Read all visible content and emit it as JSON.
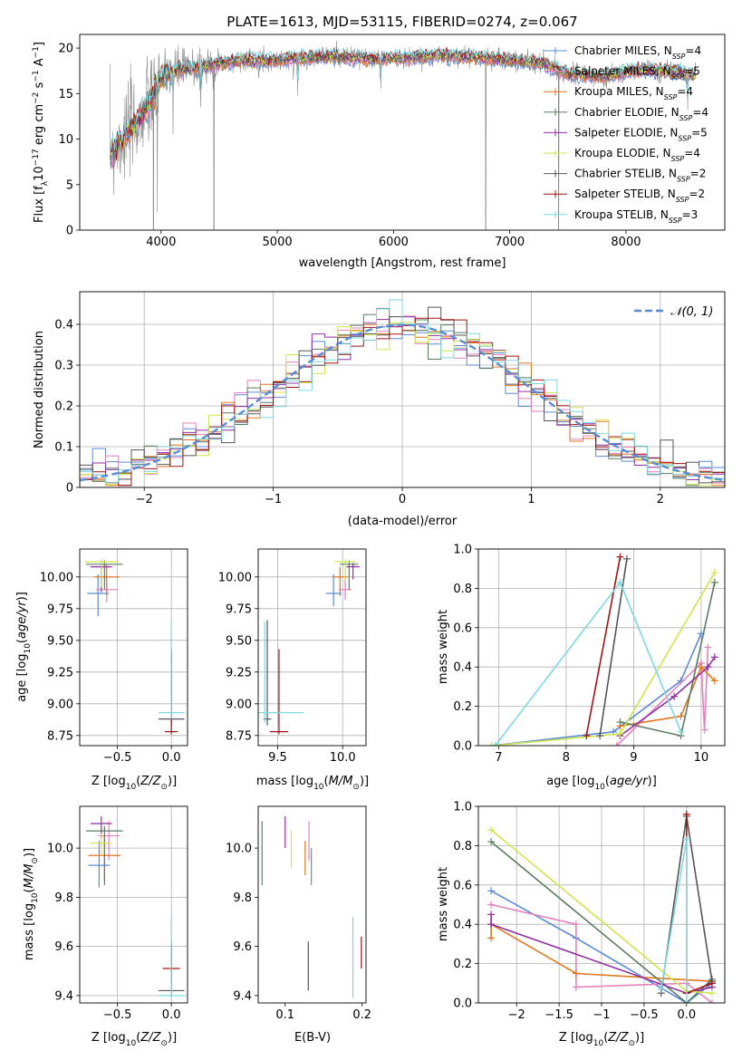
{
  "figure_title": "PLATE=1613, MJD=53115, FIBERID=0274, z=0.067",
  "colors": {
    "chabrier_miles": "#5b8bd5",
    "salpeter_miles": "#e77fbf",
    "kroupa_miles": "#e0761c",
    "chabrier_elodie": "#5a7d62",
    "salpeter_elodie": "#8e2fa0",
    "kroupa_elodie": "#cde64a",
    "chabrier_stelib": "#555555",
    "salpeter_stelib": "#a31010",
    "kroupa_stelib": "#7fd8e0",
    "spectrum_data": "#888888",
    "gaussian": "#5b8bd5",
    "grid": "#b0b0b0"
  },
  "chart_data": [
    {
      "type": "line",
      "id": "spectrum",
      "xlabel": "wavelength [Angstrom, rest frame]",
      "ylabel": "Flux [f",
      "ylabel_parts": [
        "Flux [f",
        "λ",
        "10",
        "−17",
        " erg cm",
        "−2",
        " s",
        "−1",
        " A",
        "−1",
        "]"
      ],
      "xlim": [
        3300,
        8850
      ],
      "ylim": [
        0,
        21.5
      ],
      "xticks": [
        4000,
        5000,
        6000,
        7000,
        8000
      ],
      "yticks": [
        0,
        5,
        10,
        15,
        20
      ],
      "grid": false,
      "legend_position": "upper-right",
      "legend": [
        {
          "label": "Chabrier MILES, N",
          "sub": "SSP",
          "tail": "=4",
          "color_key": "chabrier_miles"
        },
        {
          "label": "Salpeter MILES, N",
          "sub": "SSP",
          "tail": "=5",
          "color_key": "salpeter_miles"
        },
        {
          "label": "Kroupa MILES, N",
          "sub": "SSP",
          "tail": "=4",
          "color_key": "kroupa_miles"
        },
        {
          "label": "Chabrier ELODIE, N",
          "sub": "SSP",
          "tail": "=4",
          "color_key": "chabrier_elodie"
        },
        {
          "label": "Salpeter ELODIE, N",
          "sub": "SSP",
          "tail": "=5",
          "color_key": "salpeter_elodie"
        },
        {
          "label": "Kroupa ELODIE, N",
          "sub": "SSP",
          "tail": "=4",
          "color_key": "kroupa_elodie"
        },
        {
          "label": "Chabrier STELIB, N",
          "sub": "SSP",
          "tail": "=2",
          "color_key": "chabrier_stelib"
        },
        {
          "label": "Salpeter STELIB, N",
          "sub": "SSP",
          "tail": "=2",
          "color_key": "salpeter_stelib"
        },
        {
          "label": "Kroupa STELIB, N",
          "sub": "SSP",
          "tail": "=3",
          "color_key": "kroupa_stelib"
        }
      ],
      "continuum": {
        "x": [
          3560,
          3700,
          3800,
          3900,
          4000,
          4100,
          4300,
          4500,
          4700,
          4900,
          5200,
          5500,
          5800,
          6100,
          6400,
          6700,
          7000,
          7300,
          7500,
          7800,
          8100,
          8400,
          8600
        ],
        "y": [
          8.5,
          10.5,
          12.0,
          14.0,
          16.8,
          17.5,
          17.8,
          18.3,
          18.7,
          18.6,
          18.9,
          19.1,
          18.8,
          18.9,
          19.2,
          19.0,
          18.7,
          18.3,
          17.2,
          16.8,
          17.6,
          17.5,
          17.0
        ]
      },
      "absorption_dips": [
        {
          "x": 3934,
          "y": 0.0
        },
        {
          "x": 3969,
          "y": 2.0
        },
        {
          "x": 4102,
          "y": 10.5
        },
        {
          "x": 4340,
          "y": 13.5
        },
        {
          "x": 4455,
          "y": 0.0
        },
        {
          "x": 5175,
          "y": 14.8
        },
        {
          "x": 5890,
          "y": 15.5
        },
        {
          "x": 6793,
          "y": 0.0
        },
        {
          "x": 7420,
          "y": 0.0
        },
        {
          "x": 8530,
          "y": 13.2
        }
      ]
    },
    {
      "type": "bar",
      "id": "residual-histogram",
      "xlabel": "(data-model)/error",
      "ylabel": "Normed distribution",
      "xlim": [
        -2.5,
        2.5
      ],
      "ylim": [
        0,
        0.48
      ],
      "xticks": [
        -2,
        -1,
        0,
        1,
        2
      ],
      "yticks": [
        0.0,
        0.1,
        0.2,
        0.3,
        0.4
      ],
      "grid": true,
      "legend": [
        {
          "label": "𝒩(0, 1)",
          "color_key": "gaussian",
          "style": "dashed"
        }
      ],
      "legend_position": "upper-right",
      "bin_width": 0.1,
      "gaussian": {
        "mean": 0,
        "sigma": 1
      }
    },
    {
      "type": "scatter",
      "id": "age-vs-metallicity",
      "xlabel": "Z [log",
      "xlabel_parts": [
        "Z [log",
        "10",
        "(Z/Z",
        "⊙",
        ")]"
      ],
      "ylabel": "age  [log",
      "ylabel_parts": [
        "age  [log",
        "10",
        "(age/yr)]"
      ],
      "xlim": [
        -0.85,
        0.15
      ],
      "ylim": [
        8.67,
        10.22
      ],
      "xticks": [
        -0.5,
        0.0
      ],
      "yticks": [
        8.75,
        9.0,
        9.25,
        9.5,
        9.75,
        10.0
      ],
      "grid": true,
      "points": [
        {
          "color_key": "chabrier_miles",
          "x": -0.68,
          "y": 9.87,
          "xerr": 0.1,
          "yerr": [
            0.18,
            0.15
          ]
        },
        {
          "color_key": "salpeter_miles",
          "x": -0.6,
          "y": 9.9,
          "xerr": 0.1,
          "yerr": [
            0.1,
            0.12
          ]
        },
        {
          "color_key": "kroupa_miles",
          "x": -0.6,
          "y": 10.0,
          "xerr": 0.12,
          "yerr": [
            0.15,
            0.1
          ]
        },
        {
          "color_key": "chabrier_elodie",
          "x": -0.62,
          "y": 10.1,
          "xerr": 0.17,
          "yerr": [
            0.2,
            0.03
          ]
        },
        {
          "color_key": "salpeter_elodie",
          "x": -0.65,
          "y": 10.08,
          "xerr": 0.1,
          "yerr": [
            0.2,
            0.03
          ]
        },
        {
          "color_key": "kroupa_elodie",
          "x": -0.65,
          "y": 10.12,
          "xerr": 0.15,
          "yerr": [
            0.2,
            0.02
          ]
        },
        {
          "color_key": "chabrier_stelib",
          "x": 0.0,
          "y": 8.88,
          "xerr": 0.12,
          "yerr": [
            0.05,
            0.55
          ]
        },
        {
          "color_key": "salpeter_stelib",
          "x": 0.0,
          "y": 8.78,
          "xerr": 0.06,
          "yerr": [
            0.02,
            0.65
          ]
        },
        {
          "color_key": "kroupa_stelib",
          "x": 0.0,
          "y": 8.93,
          "xerr": 0.12,
          "yerr": [
            0.05,
            0.72
          ]
        }
      ]
    },
    {
      "type": "scatter",
      "id": "age-vs-mass",
      "xlabel": "mass [log",
      "xlabel_parts": [
        "mass [log",
        "10",
        "(M/M",
        "⊙",
        ")]"
      ],
      "xlim": [
        9.35,
        10.18
      ],
      "ylim": [
        8.67,
        10.22
      ],
      "xticks": [
        9.5,
        10.0
      ],
      "yticks": [
        8.75,
        9.0,
        9.25,
        9.5,
        9.75,
        10.0
      ],
      "grid": true,
      "points": [
        {
          "color_key": "chabrier_miles",
          "x": 9.93,
          "y": 9.87,
          "xerr": 0.06,
          "yerr": [
            0.1,
            0.15
          ]
        },
        {
          "color_key": "salpeter_miles",
          "x": 10.02,
          "y": 9.9,
          "xerr": 0.05,
          "yerr": [
            0.08,
            0.12
          ]
        },
        {
          "color_key": "kroupa_miles",
          "x": 9.98,
          "y": 10.0,
          "xerr": 0.06,
          "yerr": [
            0.15,
            0.08
          ]
        },
        {
          "color_key": "chabrier_elodie",
          "x": 10.05,
          "y": 10.1,
          "xerr": 0.07,
          "yerr": [
            0.2,
            0.03
          ]
        },
        {
          "color_key": "salpeter_elodie",
          "x": 10.08,
          "y": 10.08,
          "xerr": 0.05,
          "yerr": [
            0.1,
            0.03
          ]
        },
        {
          "color_key": "kroupa_elodie",
          "x": 10.02,
          "y": 10.12,
          "xerr": 0.08,
          "yerr": [
            0.15,
            0.02
          ]
        },
        {
          "color_key": "chabrier_stelib",
          "x": 9.42,
          "y": 8.88,
          "xerr": 0.03,
          "yerr": [
            0.05,
            0.78
          ]
        },
        {
          "color_key": "salpeter_stelib",
          "x": 9.51,
          "y": 8.78,
          "xerr": 0.07,
          "yerr": [
            0.02,
            0.65
          ]
        },
        {
          "color_key": "kroupa_stelib",
          "x": 9.4,
          "y": 8.93,
          "xerr": 0.3,
          "yerr": [
            0.08,
            0.72
          ]
        }
      ]
    },
    {
      "type": "line",
      "id": "mass-weight-vs-age",
      "xlabel": "age  [log",
      "xlabel_parts": [
        "age  [log",
        "10",
        "(age/yr)]"
      ],
      "ylabel": "mass weight",
      "xlim": [
        6.7,
        10.35
      ],
      "ylim": [
        0,
        1.0
      ],
      "xticks": [
        7,
        8,
        9,
        10
      ],
      "yticks": [
        0.0,
        0.2,
        0.4,
        0.6,
        0.8,
        1.0
      ],
      "grid": true,
      "series": [
        {
          "color_key": "chabrier_miles",
          "x": [
            6.9,
            8.7,
            9.7,
            10.0
          ],
          "y": [
            0.0,
            0.07,
            0.33,
            0.57
          ]
        },
        {
          "color_key": "salpeter_miles",
          "x": [
            8.75,
            10.0,
            10.05,
            10.1
          ],
          "y": [
            0.0,
            0.42,
            0.08,
            0.5
          ]
        },
        {
          "color_key": "kroupa_miles",
          "x": [
            8.8,
            9.7,
            10.0,
            10.2
          ],
          "y": [
            0.1,
            0.15,
            0.4,
            0.33
          ]
        },
        {
          "color_key": "chabrier_elodie",
          "x": [
            8.8,
            9.7,
            10.2
          ],
          "y": [
            0.12,
            0.05,
            0.83
          ]
        },
        {
          "color_key": "salpeter_elodie",
          "x": [
            8.8,
            9.6,
            10.1,
            10.2
          ],
          "y": [
            0.05,
            0.25,
            0.4,
            0.45
          ]
        },
        {
          "color_key": "kroupa_elodie",
          "x": [
            6.9,
            8.8,
            10.2
          ],
          "y": [
            0.0,
            0.06,
            0.88
          ]
        },
        {
          "color_key": "chabrier_stelib",
          "x": [
            8.5,
            8.9
          ],
          "y": [
            0.05,
            0.95
          ]
        },
        {
          "color_key": "salpeter_stelib",
          "x": [
            8.3,
            8.8
          ],
          "y": [
            0.05,
            0.96
          ]
        },
        {
          "color_key": "kroupa_stelib",
          "x": [
            6.95,
            8.8,
            9.7
          ],
          "y": [
            0.0,
            0.83,
            0.07
          ]
        }
      ]
    },
    {
      "type": "scatter",
      "id": "mass-vs-metallicity",
      "xlabel": "Z [log",
      "xlabel_parts": [
        "Z [log",
        "10",
        "(Z/Z",
        "⊙",
        ")]"
      ],
      "ylabel": "mass [log",
      "ylabel_parts": [
        "mass [log",
        "10",
        "(M/M",
        "⊙",
        ")]"
      ],
      "xlim": [
        -0.85,
        0.15
      ],
      "ylim": [
        9.37,
        10.17
      ],
      "xticks": [
        -0.5,
        0.0
      ],
      "yticks": [
        9.4,
        9.6,
        9.8,
        10.0
      ],
      "grid": true,
      "points": [
        {
          "color_key": "chabrier_miles",
          "x": -0.67,
          "y": 9.93,
          "xerr": 0.1,
          "yerr": [
            0.09,
            0.1
          ]
        },
        {
          "color_key": "salpeter_miles",
          "x": -0.58,
          "y": 10.05,
          "xerr": 0.1,
          "yerr": [
            0.1,
            0.06
          ]
        },
        {
          "color_key": "kroupa_miles",
          "x": -0.62,
          "y": 9.97,
          "xerr": 0.15,
          "yerr": [
            0.1,
            0.08
          ]
        },
        {
          "color_key": "chabrier_elodie",
          "x": -0.62,
          "y": 10.07,
          "xerr": 0.17,
          "yerr": [
            0.22,
            0.02
          ]
        },
        {
          "color_key": "salpeter_elodie",
          "x": -0.65,
          "y": 10.1,
          "xerr": 0.1,
          "yerr": [
            0.06,
            0.03
          ]
        },
        {
          "color_key": "kroupa_elodie",
          "x": -0.65,
          "y": 10.02,
          "xerr": 0.1,
          "yerr": [
            0.05,
            0.04
          ]
        },
        {
          "color_key": "chabrier_stelib",
          "x": 0.0,
          "y": 9.42,
          "xerr": 0.12,
          "yerr": [
            0.02,
            0.2
          ]
        },
        {
          "color_key": "salpeter_stelib",
          "x": 0.0,
          "y": 9.51,
          "xerr": 0.08,
          "yerr": [
            0.06,
            0.1
          ]
        },
        {
          "color_key": "kroupa_stelib",
          "x": 0.0,
          "y": 9.4,
          "xerr": 0.12,
          "yerr": [
            0.02,
            0.33
          ]
        }
      ]
    },
    {
      "type": "scatter",
      "id": "mass-vs-ebv",
      "xlabel": "E(B-V)",
      "xlim": [
        0.065,
        0.205
      ],
      "ylim": [
        9.37,
        10.17
      ],
      "xticks": [
        0.1,
        0.2
      ],
      "yticks": [
        9.4,
        9.6,
        9.8,
        10.0
      ],
      "grid": false,
      "points": [
        {
          "color_key": "chabrier_miles",
          "x": 0.134,
          "y": 9.93,
          "yerr": [
            0.08,
            0.07
          ]
        },
        {
          "color_key": "salpeter_miles",
          "x": 0.131,
          "y": 10.05,
          "yerr": [
            0.1,
            0.06
          ]
        },
        {
          "color_key": "kroupa_miles",
          "x": 0.126,
          "y": 9.97,
          "yerr": [
            0.08,
            0.06
          ]
        },
        {
          "color_key": "chabrier_elodie",
          "x": 0.07,
          "y": 10.07,
          "yerr": [
            0.22,
            0.04
          ]
        },
        {
          "color_key": "salpeter_elodie",
          "x": 0.1,
          "y": 10.1,
          "yerr": [
            0.1,
            0.03
          ]
        },
        {
          "color_key": "kroupa_elodie",
          "x": 0.108,
          "y": 10.02,
          "yerr": [
            0.1,
            0.05
          ]
        },
        {
          "color_key": "chabrier_stelib",
          "x": 0.13,
          "y": 9.52,
          "yerr": [
            0.1,
            0.1
          ]
        },
        {
          "color_key": "salpeter_stelib",
          "x": 0.199,
          "y": 9.57,
          "yerr": [
            0.06,
            0.07
          ]
        },
        {
          "color_key": "kroupa_stelib",
          "x": 0.188,
          "y": 9.55,
          "yerr": [
            0.16,
            0.17
          ]
        }
      ]
    },
    {
      "type": "line",
      "id": "mass-weight-vs-metallicity",
      "xlabel": "Z [log",
      "xlabel_parts": [
        "Z [log",
        "10",
        "(Z/Z",
        "⊙",
        ")]"
      ],
      "ylabel": "mass weight",
      "xlim": [
        -2.45,
        0.45
      ],
      "ylim": [
        0,
        1.0
      ],
      "xticks": [
        -2.0,
        -1.5,
        -1.0,
        -0.5,
        0.0
      ],
      "yticks": [
        0.0,
        0.2,
        0.4,
        0.6,
        0.8,
        1.0
      ],
      "grid": true,
      "series": [
        {
          "color_key": "chabrier_miles",
          "x": [
            -2.3,
            -1.3,
            0.0,
            0.3
          ],
          "y": [
            0.57,
            0.33,
            0.0,
            0.1
          ]
        },
        {
          "color_key": "salpeter_miles",
          "x": [
            -2.3,
            -1.3,
            -1.3,
            0.0,
            0.3
          ],
          "y": [
            0.5,
            0.4,
            0.08,
            0.1,
            0.0
          ]
        },
        {
          "color_key": "kroupa_miles",
          "x": [
            -2.3,
            -2.3,
            -1.3,
            0.3
          ],
          "y": [
            0.33,
            0.4,
            0.15,
            0.11
          ]
        },
        {
          "color_key": "chabrier_elodie",
          "x": [
            -2.3,
            0.0,
            0.3
          ],
          "y": [
            0.82,
            0.0,
            0.12
          ]
        },
        {
          "color_key": "salpeter_elodie",
          "x": [
            -2.3,
            -2.3,
            0.0,
            0.3
          ],
          "y": [
            0.45,
            0.4,
            0.05,
            0.08
          ]
        },
        {
          "color_key": "kroupa_elodie",
          "x": [
            -2.3,
            0.0,
            0.3
          ],
          "y": [
            0.88,
            0.06,
            0.05
          ]
        },
        {
          "color_key": "chabrier_stelib",
          "x": [
            -0.3,
            0.0,
            0.3
          ],
          "y": [
            0.05,
            0.95,
            0.11
          ]
        },
        {
          "color_key": "salpeter_stelib",
          "x": [
            0.0,
            0.0,
            0.3
          ],
          "y": [
            0.96,
            0.05,
            0.1
          ]
        },
        {
          "color_key": "kroupa_stelib",
          "x": [
            -0.3,
            0.0,
            0.0
          ],
          "y": [
            0.07,
            0.83,
            0.0
          ]
        }
      ]
    }
  ]
}
